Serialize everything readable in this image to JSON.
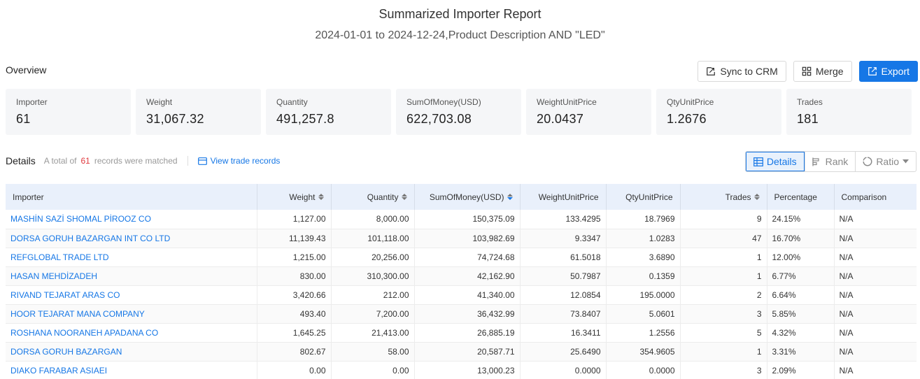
{
  "header": {
    "title": "Summarized Importer Report",
    "subtitle": "2024-01-01 to 2024-12-24,Product Description AND \"LED\""
  },
  "overview": {
    "label": "Overview",
    "actions": {
      "sync_crm": "Sync to CRM",
      "merge": "Merge",
      "export": "Export"
    },
    "stats": [
      {
        "label": "Importer",
        "value": "61"
      },
      {
        "label": "Weight",
        "value": "31,067.32"
      },
      {
        "label": "Quantity",
        "value": "491,257.8"
      },
      {
        "label": "SumOfMoney(USD)",
        "value": "622,703.08"
      },
      {
        "label": "WeightUnitPrice",
        "value": "20.0437"
      },
      {
        "label": "QtyUnitPrice",
        "value": "1.2676"
      },
      {
        "label": "Trades",
        "value": "181"
      }
    ]
  },
  "details": {
    "title": "Details",
    "count_prefix": "A total of",
    "count": "61",
    "count_suffix": "records were matched",
    "view_trade": "View trade records",
    "tabs": {
      "details": "Details",
      "rank": "Rank",
      "ratio": "Ratio"
    }
  },
  "table": {
    "columns": [
      "Importer",
      "Weight",
      "Quantity",
      "SumOfMoney(USD)",
      "WeightUnitPrice",
      "QtyUnitPrice",
      "Trades",
      "Percentage",
      "Comparison"
    ],
    "rows": [
      [
        "MASHİN SAZİ SHOMAL PİROOZ CO",
        "1,127.00",
        "8,000.00",
        "150,375.09",
        "133.4295",
        "18.7969",
        "9",
        "24.15%",
        "N/A"
      ],
      [
        "DORSA GORUH BAZARGAN INT CO LTD",
        "11,139.43",
        "101,118.00",
        "103,982.69",
        "9.3347",
        "1.0283",
        "47",
        "16.70%",
        "N/A"
      ],
      [
        "REFGLOBAL TRADE LTD",
        "1,215.00",
        "20,256.00",
        "74,724.68",
        "61.5018",
        "3.6890",
        "1",
        "12.00%",
        "N/A"
      ],
      [
        "HASAN MEHDİZADEH",
        "830.00",
        "310,300.00",
        "42,162.90",
        "50.7987",
        "0.1359",
        "1",
        "6.77%",
        "N/A"
      ],
      [
        "RIVAND TEJARAT ARAS CO",
        "3,420.66",
        "212.00",
        "41,340.00",
        "12.0854",
        "195.0000",
        "2",
        "6.64%",
        "N/A"
      ],
      [
        "HOOR TEJARAT MANA COMPANY",
        "493.40",
        "7,200.00",
        "36,432.99",
        "73.8407",
        "5.0601",
        "3",
        "5.85%",
        "N/A"
      ],
      [
        "ROSHANA NOORANEH APADANA CO",
        "1,645.25",
        "21,413.00",
        "26,885.19",
        "16.3411",
        "1.2556",
        "5",
        "4.32%",
        "N/A"
      ],
      [
        "DORSA GORUH BAZARGAN",
        "802.67",
        "58.00",
        "20,587.71",
        "25.6490",
        "354.9605",
        "1",
        "3.31%",
        "N/A"
      ],
      [
        "DIAKO FARABAR ASIAEI",
        "0.00",
        "0.00",
        "13,000.23",
        "0.0000",
        "0.0000",
        "3",
        "2.09%",
        "N/A"
      ]
    ]
  },
  "colors": {
    "accent": "#1677e6",
    "count_highlight": "#e0393e",
    "header_bg": "#e9f0fb"
  }
}
